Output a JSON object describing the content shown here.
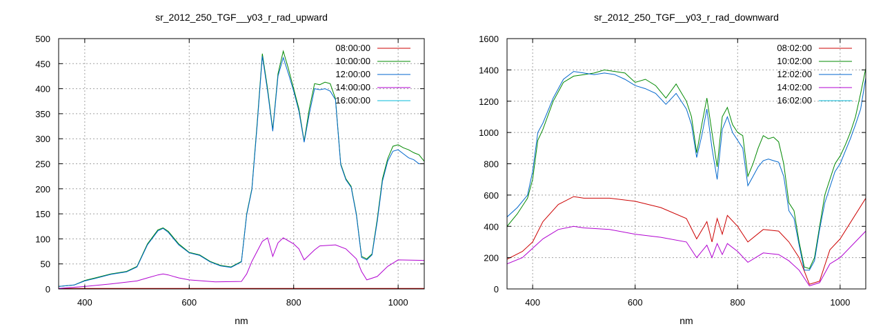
{
  "chart_data": [
    {
      "type": "line",
      "title": "sr_2012_250_TGF__y03_r_rad_upward",
      "xlabel": "nm",
      "ylabel": "",
      "xlim": [
        350,
        1050
      ],
      "ylim": [
        0,
        500
      ],
      "xticks": [
        400,
        600,
        800,
        1000
      ],
      "yticks": [
        0,
        50,
        100,
        150,
        200,
        250,
        300,
        350,
        400,
        450,
        500
      ],
      "grid": true,
      "legend_position": "top-right",
      "series": [
        {
          "name": "08:00:00",
          "color": "#cc0000",
          "x": [
            350,
            400,
            450,
            500,
            550,
            600,
            650,
            700,
            720,
            740,
            750,
            760,
            770,
            780,
            800,
            820,
            850,
            880,
            900,
            920,
            940,
            960,
            980,
            1000,
            1050
          ],
          "y": [
            1,
            1,
            1,
            1,
            1,
            1,
            1,
            1,
            1,
            1,
            1,
            1,
            1,
            1,
            1,
            1,
            1,
            1,
            1,
            1,
            1,
            1,
            1,
            1,
            1
          ]
        },
        {
          "name": "10:00:00",
          "color": "#008800",
          "x": [
            350,
            380,
            400,
            420,
            450,
            480,
            500,
            520,
            540,
            550,
            560,
            580,
            600,
            620,
            640,
            660,
            680,
            700,
            710,
            720,
            730,
            740,
            750,
            760,
            770,
            780,
            790,
            800,
            810,
            820,
            830,
            840,
            850,
            860,
            870,
            880,
            890,
            900,
            910,
            920,
            930,
            940,
            950,
            960,
            970,
            980,
            990,
            1000,
            1010,
            1020,
            1030,
            1040,
            1050
          ],
          "y": [
            5,
            8,
            17,
            22,
            30,
            35,
            45,
            90,
            118,
            122,
            115,
            90,
            73,
            68,
            55,
            47,
            44,
            55,
            150,
            200,
            330,
            470,
            400,
            318,
            430,
            475,
            440,
            400,
            360,
            295,
            360,
            410,
            408,
            413,
            410,
            380,
            250,
            220,
            205,
            150,
            65,
            60,
            70,
            140,
            220,
            260,
            285,
            288,
            282,
            278,
            272,
            268,
            255
          ]
        },
        {
          "name": "12:00:00",
          "color": "#0066cc",
          "x": [
            350,
            380,
            400,
            420,
            450,
            480,
            500,
            520,
            540,
            550,
            560,
            580,
            600,
            620,
            640,
            660,
            680,
            700,
            710,
            720,
            730,
            740,
            750,
            760,
            770,
            780,
            790,
            800,
            810,
            820,
            830,
            840,
            850,
            860,
            870,
            880,
            890,
            900,
            910,
            920,
            930,
            940,
            950,
            960,
            970,
            980,
            990,
            1000,
            1010,
            1020,
            1030,
            1040,
            1050
          ],
          "y": [
            5,
            8,
            16,
            21,
            29,
            34,
            44,
            88,
            116,
            121,
            113,
            88,
            72,
            67,
            54,
            46,
            43,
            54,
            148,
            198,
            325,
            465,
            395,
            315,
            425,
            462,
            430,
            395,
            355,
            293,
            350,
            400,
            398,
            400,
            395,
            378,
            248,
            218,
            203,
            148,
            63,
            58,
            68,
            135,
            215,
            255,
            275,
            278,
            270,
            262,
            258,
            250,
            250
          ]
        },
        {
          "name": "14:00:00",
          "color": "#b000d0",
          "x": [
            350,
            400,
            450,
            500,
            520,
            540,
            550,
            560,
            580,
            600,
            650,
            700,
            710,
            720,
            740,
            750,
            760,
            770,
            780,
            800,
            810,
            820,
            840,
            850,
            880,
            900,
            920,
            930,
            940,
            960,
            980,
            1000,
            1050
          ],
          "y": [
            1,
            5,
            10,
            16,
            22,
            28,
            30,
            28,
            22,
            18,
            14,
            15,
            30,
            55,
            95,
            102,
            65,
            92,
            102,
            90,
            80,
            58,
            78,
            86,
            88,
            80,
            60,
            35,
            18,
            25,
            45,
            58,
            57
          ]
        },
        {
          "name": "16:00:00",
          "color": "#00b8d8",
          "x": [
            350,
            1050
          ],
          "y": [
            0,
            0
          ]
        }
      ]
    },
    {
      "type": "line",
      "title": "sr_2012_250_TGF__y03_r_rad_downward",
      "xlabel": "nm",
      "ylabel": "",
      "xlim": [
        350,
        1050
      ],
      "ylim": [
        0,
        1600
      ],
      "xticks": [
        400,
        600,
        800,
        1000
      ],
      "yticks": [
        0,
        200,
        400,
        600,
        800,
        1000,
        1200,
        1400,
        1600
      ],
      "grid": true,
      "legend_position": "top-right",
      "series": [
        {
          "name": "08:02:00",
          "color": "#cc0000",
          "x": [
            350,
            380,
            400,
            420,
            450,
            480,
            500,
            550,
            600,
            650,
            700,
            720,
            740,
            750,
            760,
            770,
            780,
            800,
            820,
            850,
            880,
            900,
            920,
            940,
            960,
            980,
            1000,
            1050
          ],
          "y": [
            190,
            240,
            300,
            430,
            540,
            590,
            580,
            580,
            560,
            520,
            450,
            320,
            430,
            300,
            450,
            350,
            470,
            400,
            300,
            380,
            370,
            300,
            200,
            30,
            50,
            250,
            320,
            580
          ]
        },
        {
          "name": "10:02:00",
          "color": "#008800",
          "x": [
            350,
            370,
            390,
            400,
            410,
            420,
            440,
            460,
            480,
            500,
            520,
            540,
            560,
            580,
            600,
            620,
            640,
            660,
            680,
            700,
            710,
            720,
            730,
            740,
            750,
            760,
            770,
            780,
            790,
            800,
            810,
            820,
            830,
            840,
            850,
            860,
            870,
            880,
            890,
            900,
            910,
            920,
            930,
            940,
            950,
            960,
            970,
            980,
            990,
            1000,
            1010,
            1020,
            1030,
            1040,
            1050
          ],
          "y": [
            400,
            480,
            580,
            700,
            950,
            1020,
            1200,
            1320,
            1360,
            1370,
            1380,
            1400,
            1390,
            1380,
            1320,
            1340,
            1300,
            1220,
            1310,
            1200,
            1100,
            870,
            1050,
            1220,
            1000,
            780,
            1100,
            1160,
            1050,
            1000,
            980,
            720,
            800,
            900,
            980,
            960,
            970,
            940,
            800,
            550,
            500,
            300,
            140,
            130,
            200,
            400,
            600,
            700,
            800,
            850,
            920,
            1000,
            1100,
            1250,
            1410
          ]
        },
        {
          "name": "12:02:00",
          "color": "#0066cc",
          "x": [
            350,
            370,
            390,
            400,
            410,
            420,
            440,
            460,
            480,
            500,
            520,
            540,
            560,
            580,
            600,
            620,
            640,
            660,
            680,
            700,
            710,
            720,
            730,
            740,
            750,
            760,
            770,
            780,
            790,
            800,
            810,
            820,
            830,
            840,
            850,
            860,
            870,
            880,
            890,
            900,
            910,
            920,
            930,
            940,
            950,
            960,
            970,
            980,
            990,
            1000,
            1010,
            1020,
            1030,
            1040,
            1050
          ],
          "y": [
            460,
            520,
            600,
            750,
            1000,
            1060,
            1220,
            1340,
            1390,
            1380,
            1370,
            1380,
            1370,
            1340,
            1300,
            1280,
            1250,
            1180,
            1250,
            1150,
            1050,
            840,
            980,
            1150,
            900,
            700,
            1020,
            1100,
            1000,
            950,
            900,
            660,
            720,
            780,
            820,
            830,
            820,
            810,
            720,
            500,
            450,
            280,
            120,
            120,
            180,
            380,
            550,
            650,
            750,
            800,
            880,
            960,
            1050,
            1150,
            1350
          ]
        },
        {
          "name": "14:02:00",
          "color": "#b000d0",
          "x": [
            350,
            380,
            400,
            420,
            450,
            480,
            500,
            550,
            600,
            650,
            700,
            720,
            740,
            750,
            760,
            770,
            780,
            800,
            820,
            850,
            880,
            900,
            920,
            940,
            960,
            980,
            1000,
            1050
          ],
          "y": [
            160,
            200,
            260,
            320,
            380,
            400,
            390,
            380,
            350,
            330,
            300,
            200,
            280,
            200,
            290,
            220,
            290,
            240,
            170,
            230,
            220,
            180,
            120,
            20,
            40,
            160,
            200,
            370
          ]
        },
        {
          "name": "16:02:00",
          "color": "#00b8d8",
          "x": [
            350,
            1050
          ],
          "y": [
            0,
            0
          ]
        }
      ]
    }
  ]
}
